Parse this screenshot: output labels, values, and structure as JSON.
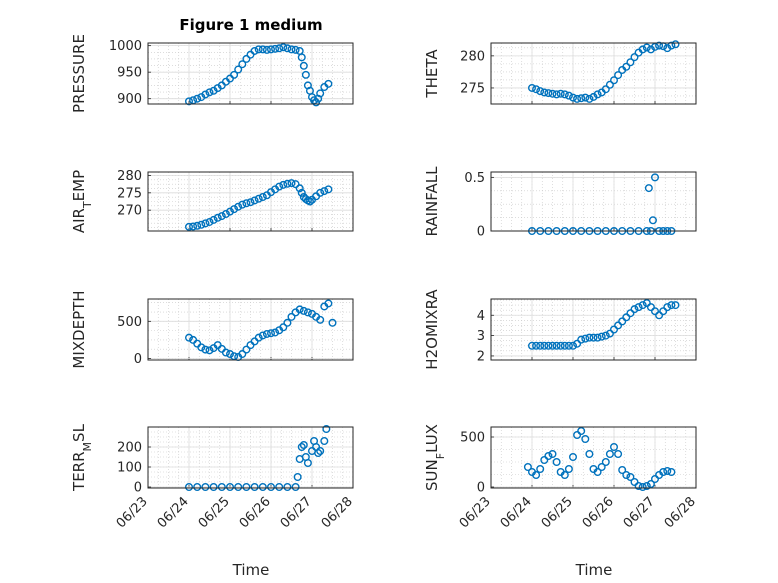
{
  "figure": {
    "title": "Figure 1 medium",
    "xlabel": "Time"
  },
  "colors": {
    "marker": "#0072BD",
    "axis": "#262626",
    "grid": "#c8c8c8"
  },
  "chart_data": [
    {
      "type": "scatter",
      "ylabel": "PRESSURE",
      "xlim": [
        0,
        5
      ],
      "ylim": [
        890,
        1005
      ],
      "yticks": [
        900,
        950,
        1000
      ],
      "x": [
        1.0,
        1.1,
        1.2,
        1.3,
        1.4,
        1.5,
        1.6,
        1.7,
        1.8,
        1.9,
        2.0,
        2.1,
        2.2,
        2.3,
        2.4,
        2.5,
        2.6,
        2.7,
        2.8,
        2.9,
        3.0,
        3.1,
        3.2,
        3.3,
        3.4,
        3.5,
        3.6,
        3.7,
        3.75,
        3.8,
        3.85,
        3.9,
        3.95,
        4.0,
        4.05,
        4.1,
        4.15,
        4.2,
        4.3,
        4.4
      ],
      "y": [
        895,
        897,
        900,
        903,
        908,
        912,
        915,
        920,
        925,
        932,
        938,
        945,
        955,
        965,
        975,
        983,
        990,
        993,
        993,
        992,
        993,
        994,
        995,
        997,
        995,
        993,
        992,
        990,
        978,
        962,
        945,
        925,
        915,
        903,
        897,
        893,
        900,
        910,
        922,
        928
      ]
    },
    {
      "type": "scatter",
      "ylabel": "THETA",
      "xlim": [
        0,
        5
      ],
      "ylim": [
        272.5,
        282
      ],
      "yticks": [
        275,
        280
      ],
      "x": [
        1.0,
        1.1,
        1.2,
        1.3,
        1.4,
        1.5,
        1.6,
        1.7,
        1.8,
        1.9,
        2.0,
        2.1,
        2.2,
        2.3,
        2.4,
        2.5,
        2.6,
        2.7,
        2.8,
        2.9,
        3.0,
        3.1,
        3.2,
        3.3,
        3.4,
        3.5,
        3.6,
        3.7,
        3.8,
        3.9,
        4.0,
        4.1,
        4.2,
        4.3,
        4.4,
        4.5
      ],
      "y": [
        275.0,
        274.8,
        274.5,
        274.3,
        274.2,
        274.1,
        274.0,
        274.1,
        274.0,
        273.8,
        273.5,
        273.3,
        273.4,
        273.5,
        273.3,
        273.6,
        274.0,
        274.3,
        274.8,
        275.5,
        276.2,
        277.0,
        277.8,
        278.3,
        279.0,
        279.8,
        280.5,
        281.0,
        281.3,
        281.0,
        281.4,
        281.6,
        281.5,
        281.2,
        281.6,
        281.8
      ]
    },
    {
      "type": "scatter",
      "ylabel": "AIR_TEMP",
      "ylabel_base": "AIR",
      "ylabel_sub": "T",
      "ylabel_rest": "EMP",
      "xlim": [
        0,
        5
      ],
      "ylim": [
        264,
        281
      ],
      "yticks": [
        270,
        275,
        280
      ],
      "x": [
        1.0,
        1.1,
        1.2,
        1.3,
        1.4,
        1.5,
        1.6,
        1.7,
        1.8,
        1.9,
        2.0,
        2.1,
        2.2,
        2.3,
        2.4,
        2.5,
        2.6,
        2.7,
        2.8,
        2.9,
        3.0,
        3.1,
        3.2,
        3.3,
        3.4,
        3.5,
        3.6,
        3.7,
        3.75,
        3.8,
        3.85,
        3.9,
        3.95,
        4.0,
        4.1,
        4.2,
        4.3,
        4.4
      ],
      "y": [
        265.2,
        265.3,
        265.5,
        265.8,
        266.2,
        266.6,
        267.2,
        267.8,
        268.3,
        268.9,
        269.6,
        270.3,
        271.0,
        271.6,
        272.0,
        272.3,
        272.8,
        273.3,
        273.8,
        274.3,
        275.2,
        276.0,
        276.8,
        277.3,
        277.6,
        277.8,
        277.5,
        276.3,
        275.0,
        273.8,
        273.2,
        272.8,
        272.5,
        273.0,
        274.0,
        275.0,
        275.5,
        276.0
      ]
    },
    {
      "type": "scatter",
      "ylabel": "RAINFALL",
      "xlim": [
        0,
        5
      ],
      "ylim": [
        0,
        0.55
      ],
      "yticks": [
        0,
        0.5
      ],
      "x": [
        1.0,
        1.2,
        1.4,
        1.6,
        1.8,
        2.0,
        2.2,
        2.4,
        2.6,
        2.8,
        3.0,
        3.2,
        3.4,
        3.6,
        3.8,
        3.85,
        3.9,
        3.95,
        4.0,
        4.1,
        4.2,
        4.3,
        4.4
      ],
      "y": [
        0,
        0,
        0,
        0,
        0,
        0,
        0,
        0,
        0,
        0,
        0,
        0,
        0,
        0,
        0,
        0.4,
        0,
        0.1,
        0.5,
        0,
        0,
        0,
        0
      ]
    },
    {
      "type": "scatter",
      "ylabel": "MIXDEPTH",
      "xlim": [
        0,
        5
      ],
      "ylim": [
        -20,
        800
      ],
      "yticks": [
        0,
        500
      ],
      "x": [
        1.0,
        1.1,
        1.2,
        1.3,
        1.4,
        1.5,
        1.6,
        1.7,
        1.8,
        1.9,
        2.0,
        2.1,
        2.2,
        2.3,
        2.4,
        2.5,
        2.6,
        2.7,
        2.8,
        2.9,
        3.0,
        3.1,
        3.2,
        3.3,
        3.4,
        3.5,
        3.6,
        3.7,
        3.8,
        3.9,
        4.0,
        4.1,
        4.2,
        4.3,
        4.4,
        4.5
      ],
      "y": [
        280,
        250,
        200,
        150,
        120,
        110,
        140,
        180,
        130,
        80,
        60,
        30,
        20,
        60,
        120,
        180,
        230,
        280,
        310,
        330,
        340,
        350,
        380,
        420,
        480,
        560,
        620,
        660,
        640,
        620,
        600,
        560,
        520,
        700,
        740,
        480
      ]
    },
    {
      "type": "scatter",
      "ylabel": "H2OMIXRA",
      "xlim": [
        0,
        5
      ],
      "ylim": [
        1.8,
        4.8
      ],
      "yticks": [
        2,
        3,
        4
      ],
      "x": [
        1.0,
        1.1,
        1.2,
        1.3,
        1.4,
        1.5,
        1.6,
        1.7,
        1.8,
        1.9,
        2.0,
        2.1,
        2.2,
        2.3,
        2.4,
        2.5,
        2.6,
        2.7,
        2.8,
        2.9,
        3.0,
        3.1,
        3.2,
        3.3,
        3.4,
        3.5,
        3.6,
        3.7,
        3.8,
        3.9,
        4.0,
        4.1,
        4.2,
        4.3,
        4.4,
        4.5
      ],
      "y": [
        2.5,
        2.5,
        2.5,
        2.5,
        2.5,
        2.5,
        2.5,
        2.5,
        2.5,
        2.5,
        2.5,
        2.6,
        2.8,
        2.85,
        2.9,
        2.9,
        2.9,
        2.95,
        3.0,
        3.1,
        3.3,
        3.5,
        3.7,
        3.9,
        4.1,
        4.3,
        4.4,
        4.5,
        4.6,
        4.4,
        4.2,
        4.0,
        4.2,
        4.4,
        4.5,
        4.5
      ]
    },
    {
      "type": "scatter",
      "ylabel": "TERR_MSL",
      "ylabel_base": "TERR",
      "ylabel_sub": "M",
      "ylabel_rest": "SL",
      "xlim": [
        0,
        5
      ],
      "ylim": [
        -5,
        300
      ],
      "yticks": [
        0,
        100,
        200
      ],
      "x": [
        1.0,
        1.2,
        1.4,
        1.6,
        1.8,
        2.0,
        2.2,
        2.4,
        2.6,
        2.8,
        3.0,
        3.2,
        3.4,
        3.6,
        3.65,
        3.7,
        3.75,
        3.8,
        3.85,
        3.9,
        4.0,
        4.05,
        4.1,
        4.15,
        4.2,
        4.3,
        4.35
      ],
      "y": [
        0,
        0,
        0,
        0,
        0,
        0,
        0,
        0,
        0,
        0,
        0,
        0,
        0,
        0,
        50,
        140,
        200,
        210,
        150,
        120,
        180,
        230,
        200,
        170,
        180,
        230,
        290
      ]
    },
    {
      "type": "scatter",
      "ylabel": "SUN_FLUX",
      "ylabel_base": "SUN",
      "ylabel_sub": "F",
      "ylabel_rest": "LUX",
      "xlim": [
        0,
        5
      ],
      "ylim": [
        -10,
        600
      ],
      "yticks": [
        0,
        500
      ],
      "x": [
        0.9,
        1.0,
        1.1,
        1.2,
        1.3,
        1.4,
        1.5,
        1.6,
        1.7,
        1.8,
        1.9,
        2.0,
        2.1,
        2.2,
        2.3,
        2.4,
        2.5,
        2.6,
        2.7,
        2.8,
        2.9,
        3.0,
        3.1,
        3.2,
        3.3,
        3.4,
        3.5,
        3.6,
        3.7,
        3.8,
        3.9,
        4.0,
        4.1,
        4.2,
        4.3,
        4.4
      ],
      "y": [
        200,
        150,
        120,
        180,
        270,
        310,
        330,
        250,
        150,
        120,
        180,
        300,
        520,
        560,
        480,
        330,
        180,
        150,
        200,
        250,
        330,
        400,
        330,
        170,
        120,
        100,
        50,
        10,
        0,
        10,
        30,
        80,
        120,
        150,
        160,
        150
      ]
    }
  ],
  "xticks": [
    "06/23",
    "06/24",
    "06/25",
    "06/26",
    "06/27",
    "06/28"
  ]
}
